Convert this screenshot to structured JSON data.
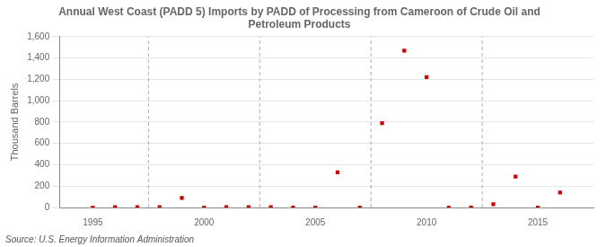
{
  "chart_data": {
    "type": "scatter",
    "title": "Annual West Coast (PADD 5) Imports by PADD of Processing from Cameroon of Crude Oil and\nPetroleum Products",
    "ylabel": "Thousand Barrels",
    "source": "Source: U.S. Energy Information Administration",
    "x": [
      1995,
      1996,
      1997,
      1998,
      1999,
      2000,
      2001,
      2002,
      2003,
      2004,
      2005,
      2006,
      2007,
      2008,
      2009,
      2010,
      2011,
      2012,
      2013,
      2014,
      2015,
      2016
    ],
    "values": [
      0,
      4,
      4,
      4,
      90,
      0,
      4,
      4,
      4,
      0,
      0,
      330,
      0,
      790,
      1470,
      1220,
      0,
      0,
      30,
      290,
      0,
      140
    ],
    "color": "#cc0000",
    "marker": "square",
    "xlim": [
      1993.5,
      2017.5
    ],
    "xticks": [
      1995,
      2000,
      2005,
      2010,
      2015
    ],
    "ylim": [
      0,
      1600
    ],
    "yticks": [
      0,
      200,
      400,
      600,
      800,
      {
        "value": 1000,
        "label": "1,000"
      },
      {
        "value": 1200,
        "label": "1,200"
      },
      {
        "value": 1400,
        "label": "1,400"
      },
      {
        "value": 1600,
        "label": "1,600"
      }
    ],
    "vlines": [
      1997.5,
      2002.5,
      2007.5,
      2012.5
    ],
    "grid": "y"
  }
}
